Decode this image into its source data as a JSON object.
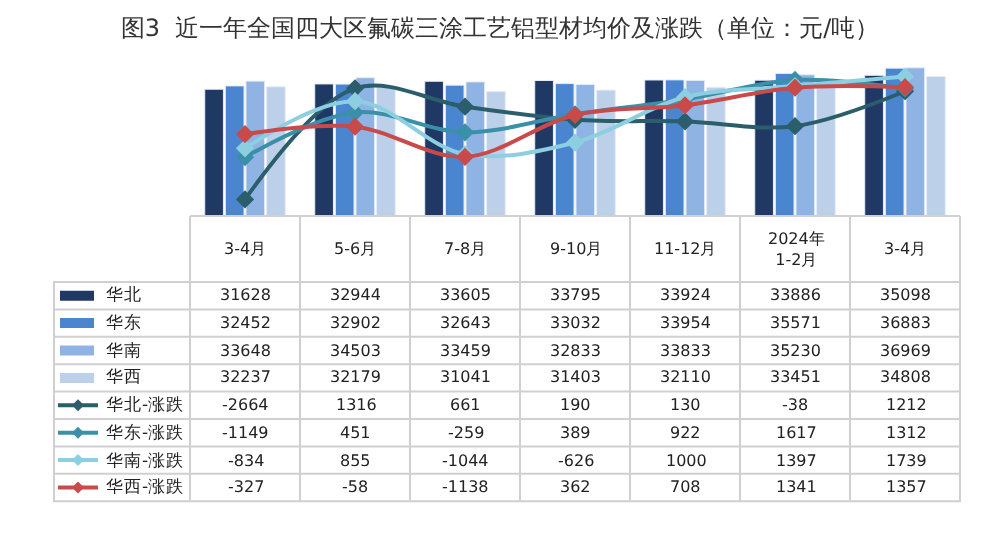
{
  "chart_data": {
    "type": "bar",
    "title": "图3  近一年全国四大区氟碳三涂工艺铝型材均价及涨跌（单位：元/吨）",
    "categories": [
      "3-4月",
      "5-6月",
      "7-8月",
      "9-10月",
      "11-12月",
      "2024年\n1-2月",
      "3-4月"
    ],
    "data_labels": true,
    "legend": "bottom left",
    "marker": "diamond",
    "line_style": "solid",
    "series": [
      {
        "name": "华北",
        "color": "#1f3864",
        "values": [
          31628,
          32944,
          33605,
          33795,
          33924,
          33886,
          35098
        ]
      },
      {
        "name": "华东",
        "color": "#4a86d0",
        "values": [
          32452,
          32902,
          32643,
          33032,
          33954,
          35571,
          36883
        ]
      },
      {
        "name": "华南",
        "color": "#8fb4e3",
        "values": [
          33648,
          34503,
          33459,
          32833,
          33833,
          35230,
          36969
        ]
      },
      {
        "name": "华西",
        "color": "#bdd0ea",
        "values": [
          32237,
          32179,
          31041,
          31403,
          32110,
          33451,
          34808
        ]
      },
      {
        "name": "华北-涨跌",
        "type": "line",
        "axis": "y2",
        "color": "#2b5d6b",
        "values": [
          -2664,
          1316,
          661,
          190,
          130,
          -38,
          1212
        ]
      },
      {
        "name": "华东-涨跌",
        "type": "line",
        "axis": "y2",
        "color": "#3a90a8",
        "values": [
          -1149,
          451,
          -259,
          389,
          922,
          1617,
          1312
        ]
      },
      {
        "name": "华南-涨跌",
        "type": "line",
        "axis": "y2",
        "color": "#8ccfe0",
        "values": [
          -834,
          855,
          -1044,
          -626,
          1000,
          1397,
          1739
        ]
      },
      {
        "name": "华西-涨跌",
        "type": "line",
        "axis": "y2",
        "color": "#c84a4a",
        "values": [
          -327,
          -58,
          -1138,
          362,
          708,
          1341,
          1357
        ]
      }
    ]
  }
}
